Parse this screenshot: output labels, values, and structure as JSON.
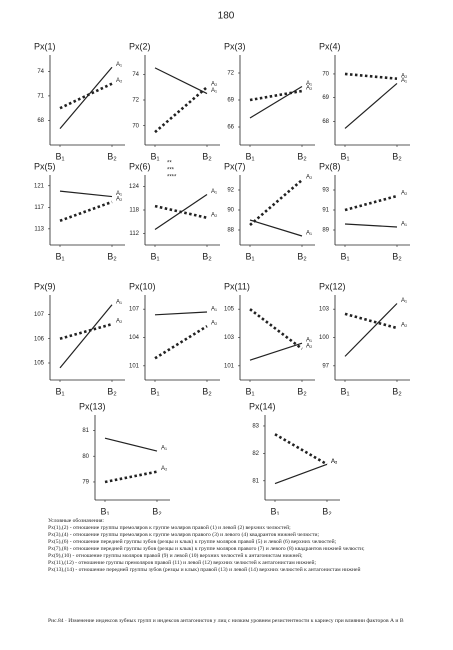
{
  "page_number": "180",
  "chart_data": [
    {
      "type": "line",
      "title": "Px(1)",
      "categories": [
        "B₁",
        "B₂"
      ],
      "ylim": [
        65,
        76
      ],
      "yticks": [
        68,
        71,
        74
      ],
      "series": [
        {
          "name": "A₁",
          "color": "#222",
          "dash": false,
          "values": [
            67,
            74.5
          ]
        },
        {
          "name": "A₂",
          "color": "#222",
          "dash": true,
          "values": [
            69.5,
            72.5
          ]
        }
      ]
    },
    {
      "type": "line",
      "title": "Px(2)",
      "categories": [
        "B₁",
        "B₂"
      ],
      "ylim": [
        68.5,
        75.5
      ],
      "yticks": [
        70,
        72,
        74
      ],
      "series": [
        {
          "name": "A₁",
          "color": "#222",
          "dash": false,
          "values": [
            74.5,
            72.5
          ]
        },
        {
          "name": "A₂",
          "color": "#222",
          "dash": true,
          "values": [
            69.5,
            73
          ]
        }
      ]
    },
    {
      "type": "line",
      "title": "Px(3)",
      "categories": [
        "B₁",
        "B₂"
      ],
      "ylim": [
        64,
        74
      ],
      "yticks": [
        66,
        69,
        72
      ],
      "series": [
        {
          "name": "A₁",
          "color": "#222",
          "dash": false,
          "values": [
            67,
            70.5
          ]
        },
        {
          "name": "A₂",
          "color": "#222",
          "dash": true,
          "values": [
            69,
            70
          ]
        }
      ]
    },
    {
      "type": "line",
      "title": "Px(4)",
      "categories": [
        "B₁",
        "B₂"
      ],
      "ylim": [
        67,
        70.8
      ],
      "yticks": [
        68,
        69,
        70
      ],
      "series": [
        {
          "name": "A₁",
          "color": "#222",
          "dash": false,
          "values": [
            67.7,
            69.6
          ]
        },
        {
          "name": "A₂",
          "color": "#222",
          "dash": true,
          "values": [
            70,
            69.8
          ]
        }
      ]
    },
    {
      "type": "line",
      "title": "Px(5)",
      "categories": [
        "B₁",
        "B₂"
      ],
      "ylim": [
        110,
        123
      ],
      "yticks": [
        113,
        117,
        121
      ],
      "series": [
        {
          "name": "A₁",
          "color": "#222",
          "dash": false,
          "values": [
            120,
            119
          ]
        },
        {
          "name": "A₂",
          "color": "#222",
          "dash": true,
          "values": [
            114.5,
            118
          ]
        }
      ]
    },
    {
      "type": "line",
      "title": "Px(6)",
      "annotations": [
        "**",
        "***",
        "****"
      ],
      "categories": [
        "B₁",
        "B₂"
      ],
      "ylim": [
        109,
        127
      ],
      "yticks": [
        112,
        118,
        124
      ],
      "series": [
        {
          "name": "A₁",
          "color": "#222",
          "dash": false,
          "values": [
            113,
            122
          ]
        },
        {
          "name": "A₂",
          "color": "#222",
          "dash": true,
          "values": [
            119,
            116
          ]
        }
      ]
    },
    {
      "type": "line",
      "title": "Px(7)",
      "categories": [
        "B₁",
        "B₂"
      ],
      "ylim": [
        86.5,
        93.5
      ],
      "yticks": [
        88,
        90,
        92
      ],
      "series": [
        {
          "name": "A₁",
          "color": "#222",
          "dash": false,
          "values": [
            89,
            87.4
          ]
        },
        {
          "name": "A₂",
          "color": "#222",
          "dash": true,
          "values": [
            88.5,
            93
          ]
        }
      ]
    },
    {
      "type": "line",
      "title": "Px(8)",
      "categories": [
        "B₁",
        "B₂"
      ],
      "ylim": [
        87.5,
        94.5
      ],
      "yticks": [
        89,
        91,
        93
      ],
      "series": [
        {
          "name": "A₁",
          "color": "#222",
          "dash": false,
          "values": [
            89.6,
            89.3
          ]
        },
        {
          "name": "A₂",
          "color": "#222",
          "dash": true,
          "values": [
            91,
            92.4
          ]
        }
      ]
    },
    {
      "type": "line",
      "title": "Px(9)",
      "categories": [
        "B₁",
        "B₂"
      ],
      "ylim": [
        104.3,
        107.8
      ],
      "yticks": [
        105,
        106,
        107
      ],
      "series": [
        {
          "name": "A₁",
          "color": "#222",
          "dash": false,
          "values": [
            104.8,
            107.4
          ]
        },
        {
          "name": "A₂",
          "color": "#222",
          "dash": true,
          "values": [
            106,
            106.6
          ]
        }
      ]
    },
    {
      "type": "line",
      "title": "Px(10)",
      "categories": [
        "B₁",
        "B₂"
      ],
      "ylim": [
        99.5,
        108.5
      ],
      "yticks": [
        101,
        104,
        107
      ],
      "series": [
        {
          "name": "A₁",
          "color": "#222",
          "dash": false,
          "values": [
            106.4,
            106.7
          ]
        },
        {
          "name": "A₂",
          "color": "#222",
          "dash": true,
          "values": [
            101.8,
            105.2
          ]
        }
      ]
    },
    {
      "type": "line",
      "title": "Px(11)",
      "categories": [
        "B₁",
        "B₂"
      ],
      "ylim": [
        100,
        106
      ],
      "yticks": [
        101,
        103,
        105
      ],
      "series": [
        {
          "name": "A₁",
          "color": "#222",
          "dash": false,
          "values": [
            101.4,
            102.6
          ]
        },
        {
          "name": "A₂",
          "color": "#222",
          "dash": true,
          "values": [
            105,
            102.2
          ]
        }
      ]
    },
    {
      "type": "line",
      "title": "Px(12)",
      "categories": [
        "B₁",
        "B₂"
      ],
      "ylim": [
        95.5,
        104.5
      ],
      "yticks": [
        97,
        100,
        103
      ],
      "series": [
        {
          "name": "A₁",
          "color": "#222",
          "dash": false,
          "values": [
            98,
            103.6
          ]
        },
        {
          "name": "A₂",
          "color": "#222",
          "dash": true,
          "values": [
            102.5,
            101
          ]
        }
      ]
    },
    {
      "type": "line",
      "title": "Px(13)",
      "categories": [
        "B₁",
        "B₂"
      ],
      "ylim": [
        78.3,
        81.6
      ],
      "yticks": [
        79,
        80,
        81
      ],
      "series": [
        {
          "name": "A₁",
          "color": "#222",
          "dash": false,
          "values": [
            80.7,
            80.2
          ]
        },
        {
          "name": "A₂",
          "color": "#222",
          "dash": true,
          "values": [
            79,
            79.4
          ]
        }
      ]
    },
    {
      "type": "line",
      "title": "Px(14)",
      "categories": [
        "B₁",
        "B₂"
      ],
      "ylim": [
        80.3,
        83.4
      ],
      "yticks": [
        81,
        82,
        83
      ],
      "series": [
        {
          "name": "A₁",
          "color": "#222",
          "dash": false,
          "values": [
            80.9,
            81.6
          ]
        },
        {
          "name": "A₂",
          "color": "#222",
          "dash": true,
          "values": [
            82.7,
            81.6
          ]
        }
      ]
    }
  ],
  "legend": {
    "heading": "Условные обозначения:",
    "items": [
      "Px(1),(2) - отношение группы премоляров к группе моляров правой (1) и левой (2) верхних челюстей;",
      "Px(3),(4) - отношение группы премоляров к группе моляров правого (3) и левого (4) квадрантов нижней челюсти;",
      "Px(5),(6) - отношение передней группы зубов (резцы и клык) к группе моляров правой (5) и левой (6) верхних челюстей;",
      "Px(7),(8) - отношение передней группы зубов (резцы и клык) к группе моляров правого (7) и левого (8) квадрантов нижней челюсти;",
      "Px(9),(10) - отношение группы моляров правой (9) и левой (10) верхних челюстей к антагонистам нижней;",
      "Px(11),(12) - отношение группы премоляров правой (11) и левой (12) верхних челюстей к антагонистам нижней;",
      "Px(13),(14) - отношение передней группы зубов (резцы и клык) правой (13) и левой (14) верхних челюстей к антагонистам нижней"
    ]
  },
  "caption": "Рис.84 · Изменение индексов зубных групп и индексов антагонистов у лиц с низким уровнем резистентности к кариесу при влиянии факторов А и В"
}
